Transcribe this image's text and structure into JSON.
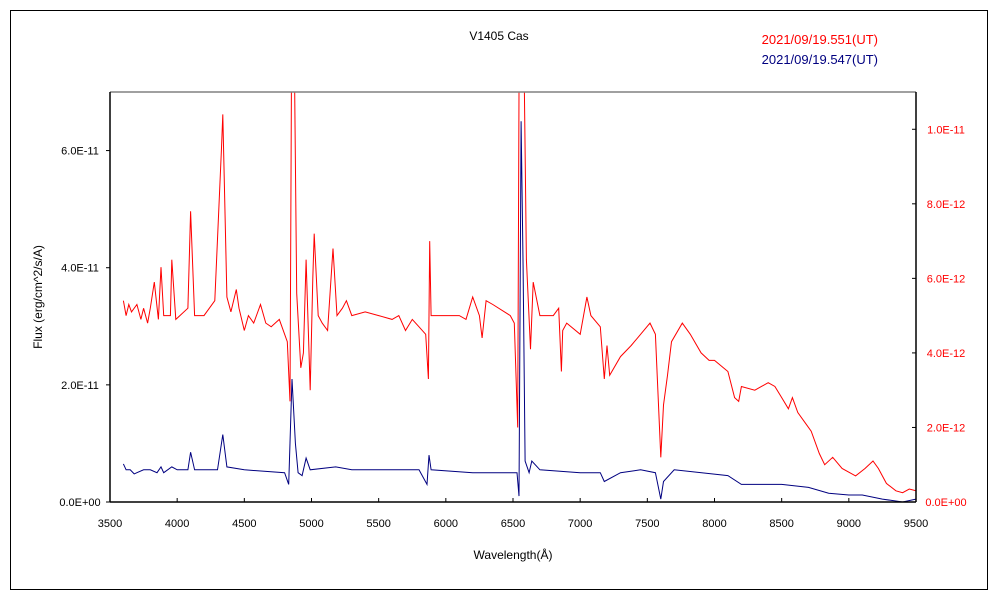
{
  "chart_data": {
    "type": "line",
    "title": "V1405 Cas",
    "xlabel": "Wavelength(Å)",
    "ylabel": "Flux (erg/cm^2/s/A)",
    "xlim": [
      3500,
      9500
    ],
    "ylim_left": [
      0,
      7e-11
    ],
    "ylim_right": [
      0,
      1.1e-11
    ],
    "x_ticks": [
      3500,
      4000,
      4500,
      5000,
      5500,
      6000,
      6500,
      7000,
      7500,
      8000,
      8500,
      9000,
      9500
    ],
    "x_tick_labels": [
      "3500",
      "4000",
      "4500",
      "5000",
      "5500",
      "6000",
      "6500",
      "7000",
      "7500",
      "8000",
      "8500",
      "9000",
      "9500"
    ],
    "y_left_ticks": [
      0,
      2e-11,
      4e-11,
      6e-11
    ],
    "y_left_tick_labels": [
      "0.0E+00",
      "2.0E-11",
      "4.0E-11",
      "6.0E-11"
    ],
    "y_right_ticks": [
      0,
      2e-12,
      4e-12,
      6e-12,
      8e-12,
      1e-11
    ],
    "y_right_tick_labels": [
      "0.0E+00",
      "2.0E-12",
      "4.0E-12",
      "6.0E-12",
      "8.0E-12",
      "1.0E-11"
    ],
    "grid": false,
    "legend_placement": "top-right",
    "series": [
      {
        "name": "2021/09/19.551(UT)",
        "color": "#ff0000",
        "axis": "right",
        "points": [
          [
            3600,
            5.4e-12
          ],
          [
            3620,
            5e-12
          ],
          [
            3640,
            5.3e-12
          ],
          [
            3660,
            5.1e-12
          ],
          [
            3700,
            5.3e-12
          ],
          [
            3730,
            4.9e-12
          ],
          [
            3750,
            5.2e-12
          ],
          [
            3780,
            4.8e-12
          ],
          [
            3800,
            5.2e-12
          ],
          [
            3830,
            5.9e-12
          ],
          [
            3860,
            4.9e-12
          ],
          [
            3880,
            6.3e-12
          ],
          [
            3900,
            5e-12
          ],
          [
            3950,
            5e-12
          ],
          [
            3960,
            6.5e-12
          ],
          [
            3990,
            4.9e-12
          ],
          [
            4020,
            5e-12
          ],
          [
            4080,
            5.2e-12
          ],
          [
            4100,
            7.8e-12
          ],
          [
            4130,
            5e-12
          ],
          [
            4200,
            5e-12
          ],
          [
            4280,
            5.4e-12
          ],
          [
            4330,
            9.5e-12
          ],
          [
            4340,
            1.04e-11
          ],
          [
            4370,
            5.5e-12
          ],
          [
            4400,
            5.1e-12
          ],
          [
            4440,
            5.7e-12
          ],
          [
            4460,
            5.2e-12
          ],
          [
            4500,
            4.6e-12
          ],
          [
            4530,
            5e-12
          ],
          [
            4570,
            4.8e-12
          ],
          [
            4620,
            5.3e-12
          ],
          [
            4660,
            4.8e-12
          ],
          [
            4700,
            4.7e-12
          ],
          [
            4760,
            4.9e-12
          ],
          [
            4820,
            4.3e-12
          ],
          [
            4840,
            2.7e-12
          ],
          [
            4850,
            1.1e-11
          ],
          [
            4875,
            1.1e-11
          ],
          [
            4890,
            5.6e-12
          ],
          [
            4920,
            3.6e-12
          ],
          [
            4940,
            4e-12
          ],
          [
            4960,
            6.5e-12
          ],
          [
            4990,
            3e-12
          ],
          [
            5010,
            6e-12
          ],
          [
            5020,
            7.2e-12
          ],
          [
            5050,
            5e-12
          ],
          [
            5080,
            4.8e-12
          ],
          [
            5120,
            4.6e-12
          ],
          [
            5160,
            6.8e-12
          ],
          [
            5190,
            5e-12
          ],
          [
            5230,
            5.2e-12
          ],
          [
            5260,
            5.4e-12
          ],
          [
            5300,
            5e-12
          ],
          [
            5400,
            5.1e-12
          ],
          [
            5500,
            5e-12
          ],
          [
            5600,
            4.9e-12
          ],
          [
            5650,
            5e-12
          ],
          [
            5700,
            4.6e-12
          ],
          [
            5750,
            4.9e-12
          ],
          [
            5800,
            4.7e-12
          ],
          [
            5850,
            4.5e-12
          ],
          [
            5870,
            3.3e-12
          ],
          [
            5880,
            7e-12
          ],
          [
            5890,
            5e-12
          ],
          [
            6000,
            5e-12
          ],
          [
            6100,
            5e-12
          ],
          [
            6150,
            4.9e-12
          ],
          [
            6200,
            5.5e-12
          ],
          [
            6250,
            5e-12
          ],
          [
            6270,
            4.4e-12
          ],
          [
            6300,
            5.4e-12
          ],
          [
            6350,
            5.3e-12
          ],
          [
            6480,
            5e-12
          ],
          [
            6510,
            4.8e-12
          ],
          [
            6535,
            2e-12
          ],
          [
            6545,
            1.1e-11
          ],
          [
            6585,
            1.1e-11
          ],
          [
            6600,
            6.5e-12
          ],
          [
            6630,
            4.1e-12
          ],
          [
            6650,
            5.9e-12
          ],
          [
            6700,
            5e-12
          ],
          [
            6800,
            5e-12
          ],
          [
            6840,
            5.2e-12
          ],
          [
            6860,
            3.5e-12
          ],
          [
            6870,
            4.6e-12
          ],
          [
            6900,
            4.8e-12
          ],
          [
            7000,
            4.5e-12
          ],
          [
            7050,
            5.5e-12
          ],
          [
            7080,
            5e-12
          ],
          [
            7150,
            4.7e-12
          ],
          [
            7180,
            3.3e-12
          ],
          [
            7200,
            4.2e-12
          ],
          [
            7220,
            3.4e-12
          ],
          [
            7300,
            3.9e-12
          ],
          [
            7380,
            4.2e-12
          ],
          [
            7450,
            4.5e-12
          ],
          [
            7520,
            4.8e-12
          ],
          [
            7560,
            4.5e-12
          ],
          [
            7600,
            1.2e-12
          ],
          [
            7620,
            2.6e-12
          ],
          [
            7650,
            3.4e-12
          ],
          [
            7680,
            4.3e-12
          ],
          [
            7760,
            4.8e-12
          ],
          [
            7820,
            4.5e-12
          ],
          [
            7900,
            4e-12
          ],
          [
            7960,
            3.8e-12
          ],
          [
            8000,
            3.8e-12
          ],
          [
            8100,
            3.5e-12
          ],
          [
            8150,
            2.8e-12
          ],
          [
            8180,
            2.7e-12
          ],
          [
            8200,
            3.1e-12
          ],
          [
            8300,
            3e-12
          ],
          [
            8400,
            3.2e-12
          ],
          [
            8450,
            3.1e-12
          ],
          [
            8500,
            2.8e-12
          ],
          [
            8550,
            2.5e-12
          ],
          [
            8580,
            2.8e-12
          ],
          [
            8620,
            2.4e-12
          ],
          [
            8680,
            2.1e-12
          ],
          [
            8720,
            1.9e-12
          ],
          [
            8780,
            1.3e-12
          ],
          [
            8820,
            1e-12
          ],
          [
            8880,
            1.2e-12
          ],
          [
            8950,
            9e-13
          ],
          [
            9050,
            7e-13
          ],
          [
            9120,
            9e-13
          ],
          [
            9180,
            1.1e-12
          ],
          [
            9220,
            9e-13
          ],
          [
            9280,
            5e-13
          ],
          [
            9350,
            3e-13
          ],
          [
            9400,
            2.5e-13
          ],
          [
            9450,
            3.5e-13
          ],
          [
            9500,
            3e-13
          ]
        ]
      },
      {
        "name": "2021/09/19.547(UT)",
        "color": "#000080",
        "axis": "left",
        "points": [
          [
            3600,
            6.5e-12
          ],
          [
            3620,
            5.5e-12
          ],
          [
            3650,
            5.5e-12
          ],
          [
            3680,
            4.8e-12
          ],
          [
            3700,
            5e-12
          ],
          [
            3750,
            5.5e-12
          ],
          [
            3800,
            5.5e-12
          ],
          [
            3850,
            5e-12
          ],
          [
            3880,
            6e-12
          ],
          [
            3900,
            5e-12
          ],
          [
            3960,
            6e-12
          ],
          [
            4000,
            5.5e-12
          ],
          [
            4080,
            5.5e-12
          ],
          [
            4100,
            8.5e-12
          ],
          [
            4130,
            5.5e-12
          ],
          [
            4300,
            5.5e-12
          ],
          [
            4340,
            1.15e-11
          ],
          [
            4370,
            6e-12
          ],
          [
            4500,
            5.5e-12
          ],
          [
            4800,
            5e-12
          ],
          [
            4830,
            3e-12
          ],
          [
            4855,
            2.1e-11
          ],
          [
            4880,
            1e-11
          ],
          [
            4900,
            5e-12
          ],
          [
            4930,
            4.5e-12
          ],
          [
            4960,
            7.5e-12
          ],
          [
            4990,
            5.5e-12
          ],
          [
            5180,
            6e-12
          ],
          [
            5300,
            5.5e-12
          ],
          [
            5600,
            5.5e-12
          ],
          [
            5800,
            5.5e-12
          ],
          [
            5860,
            3e-12
          ],
          [
            5875,
            8e-12
          ],
          [
            5890,
            5.5e-12
          ],
          [
            6200,
            5e-12
          ],
          [
            6480,
            5e-12
          ],
          [
            6530,
            5e-12
          ],
          [
            6545,
            1e-12
          ],
          [
            6560,
            6.5e-11
          ],
          [
            6575,
            4e-11
          ],
          [
            6590,
            7e-12
          ],
          [
            6620,
            5e-12
          ],
          [
            6640,
            7e-12
          ],
          [
            6700,
            5.5e-12
          ],
          [
            7000,
            5e-12
          ],
          [
            7150,
            5e-12
          ],
          [
            7180,
            3.5e-12
          ],
          [
            7300,
            5e-12
          ],
          [
            7450,
            5.5e-12
          ],
          [
            7560,
            5e-12
          ],
          [
            7600,
            5e-13
          ],
          [
            7620,
            3.5e-12
          ],
          [
            7700,
            5.5e-12
          ],
          [
            8100,
            4.5e-12
          ],
          [
            8200,
            3e-12
          ],
          [
            8500,
            3e-12
          ],
          [
            8700,
            2.5e-12
          ],
          [
            8850,
            1.5e-12
          ],
          [
            9000,
            1.2e-12
          ],
          [
            9100,
            1.2e-12
          ],
          [
            9250,
            5e-13
          ],
          [
            9400,
            0.0
          ],
          [
            9500,
            5e-13
          ]
        ]
      }
    ]
  }
}
